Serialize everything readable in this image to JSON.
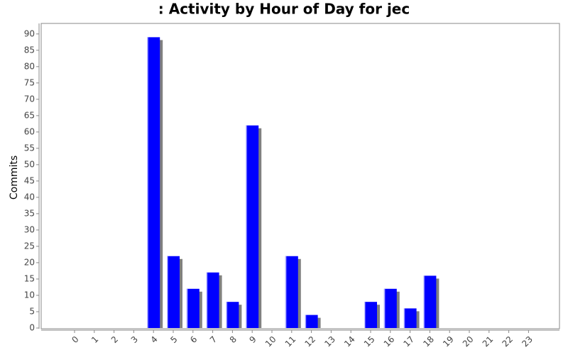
{
  "chart_data": {
    "type": "bar",
    "title": ": Activity by Hour of Day for jec",
    "y_label": "Commits",
    "categories": [
      "0",
      "1",
      "2",
      "3",
      "4",
      "5",
      "6",
      "7",
      "8",
      "9",
      "10",
      "11",
      "12",
      "13",
      "14",
      "15",
      "16",
      "17",
      "18",
      "19",
      "20",
      "21",
      "22",
      "23"
    ],
    "values": [
      0,
      0,
      0,
      0,
      89,
      22,
      12,
      17,
      8,
      62,
      0,
      22,
      4,
      0,
      0,
      8,
      12,
      6,
      16,
      0,
      0,
      0,
      0,
      0
    ],
    "color": "#0000ff",
    "shadow_color": "#808080",
    "ylim": [
      0,
      93
    ],
    "yticks": [
      0,
      5,
      10,
      15,
      20,
      25,
      30,
      35,
      40,
      45,
      50,
      55,
      60,
      65,
      70,
      75,
      80,
      85,
      90
    ],
    "grid": false
  }
}
